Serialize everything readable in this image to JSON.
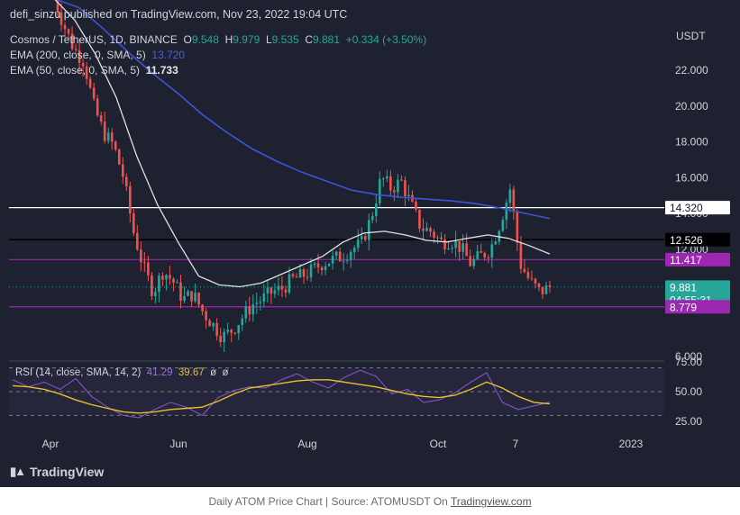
{
  "header": {
    "published": "defi_sinzu published on TradingView.com, Nov 23, 2022 19:04 UTC",
    "symbol": "Cosmos / TetherUS, 1D, BINANCE",
    "o_label": "O",
    "o": "9.548",
    "h_label": "H",
    "h": "9.979",
    "l_label": "L",
    "l": "9.535",
    "c_label": "C",
    "c": "9.881",
    "change": "+0.334 (+3.50%)",
    "ema200_label": "EMA (200, close, 0, SMA, 5)",
    "ema200_value": "13.720",
    "ema50_label": "EMA (50, close, 0, SMA, 5)",
    "ema50_value": "11.733"
  },
  "rsi_legend": {
    "label": "RSI (14, close, SMA, 14, 2)",
    "rsi": "41.29",
    "sma": "39.67",
    "extra1": "ø",
    "extra2": "ø"
  },
  "footer": {
    "brand": "TradingView",
    "caption_prefix": "Daily ATOM Price Chart | Source: ATOMUSDT On ",
    "caption_link": "Tradingview.com"
  },
  "chart_data": [
    {
      "type": "candlestick",
      "title": "Cosmos / TetherUS, 1D, BINANCE",
      "y_unit": "USDT",
      "ylim": [
        6,
        24
      ],
      "y_ticks": [
        "6.000",
        "12.000",
        "14.000",
        "16.000",
        "18.000",
        "20.000",
        "22.000"
      ],
      "x_ticks": [
        "Apr",
        "Jun",
        "Aug",
        "Oct",
        "7",
        "2023"
      ],
      "price_tags": [
        {
          "value": "14.320",
          "kind": "level"
        },
        {
          "value": "12.526",
          "kind": "level"
        },
        {
          "value": "11.417",
          "kind": "level"
        },
        {
          "value": "9.881",
          "kind": "last",
          "countdown": "04:55:31"
        },
        {
          "value": "8.779",
          "kind": "level"
        }
      ],
      "horizontal_levels": [
        14.32,
        12.526,
        11.417,
        8.779
      ],
      "closes_approx": [
        26,
        24.5,
        23.2,
        22.5,
        20,
        18.5,
        17.8,
        16,
        13,
        11,
        9.6,
        10.8,
        10.2,
        9.2,
        9.5,
        8.5,
        7.8,
        7.1,
        7.5,
        8.2,
        8.9,
        9.2,
        9.6,
        9.8,
        10.3,
        10.5,
        10.8,
        11.2,
        11.4,
        11.6,
        12,
        12.3,
        13.8,
        16,
        15.4,
        15.8,
        14.5,
        13.2,
        13,
        12.4,
        12.5,
        12.1,
        11.2,
        11.6,
        12,
        13.5,
        15.4,
        11.2,
        10.2,
        9.6,
        9.881
      ],
      "ema200_approx": [
        26,
        25.5,
        24.3,
        23,
        21.8,
        20.7,
        19.5,
        18.5,
        17.6,
        16.9,
        16.3,
        15.8,
        15.3,
        15.05,
        14.9,
        14.8,
        14.7,
        14.55,
        14.3,
        14.0,
        13.72
      ],
      "ema50_approx": [
        26,
        24.8,
        22.9,
        20.5,
        17.2,
        14.5,
        12.4,
        10.5,
        10.0,
        9.9,
        10.1,
        10.6,
        11.1,
        11.6,
        12.4,
        12.9,
        13.0,
        12.8,
        12.5,
        12.4,
        12.6,
        12.8,
        12.6,
        12.2,
        11.733
      ],
      "series": [
        {
          "name": "EMA (200, close, 0, SMA, 5)",
          "value_shown": 13.72,
          "color": "#3b55d9"
        },
        {
          "name": "EMA (50, close, 0, SMA, 5)",
          "value_shown": 11.733,
          "color": "#e0e0e0"
        }
      ],
      "colors": {
        "up": "#26a69a",
        "down": "#ef5350",
        "level": "#9c27b0"
      }
    },
    {
      "type": "line",
      "title": "RSI (14, close, SMA, 14, 2)",
      "ylim": [
        20,
        80
      ],
      "y_ticks": [
        "25.00",
        "50.00",
        "75.00"
      ],
      "bands": [
        30,
        50,
        70
      ],
      "rsi_approx": [
        60,
        54,
        58,
        52,
        61,
        46,
        37,
        30,
        28,
        35,
        41,
        37,
        30,
        45,
        51,
        54,
        53,
        60,
        65,
        58,
        53,
        62,
        68,
        63,
        48,
        52,
        41,
        43,
        49,
        58,
        66,
        41,
        35,
        38,
        41.29
      ],
      "sma_approx": [
        55,
        54,
        52,
        48,
        43,
        39,
        36,
        33,
        32,
        33,
        35,
        36,
        37,
        42,
        48,
        53,
        55,
        57,
        59,
        60,
        60,
        58,
        56,
        54,
        51,
        48,
        46,
        45,
        47,
        52,
        58,
        53,
        46,
        41,
        39.67
      ],
      "series": [
        {
          "name": "RSI",
          "value_shown": 41.29,
          "color": "#7e57c2"
        },
        {
          "name": "SMA",
          "value_shown": 39.67,
          "color": "#e6c229"
        }
      ]
    }
  ]
}
